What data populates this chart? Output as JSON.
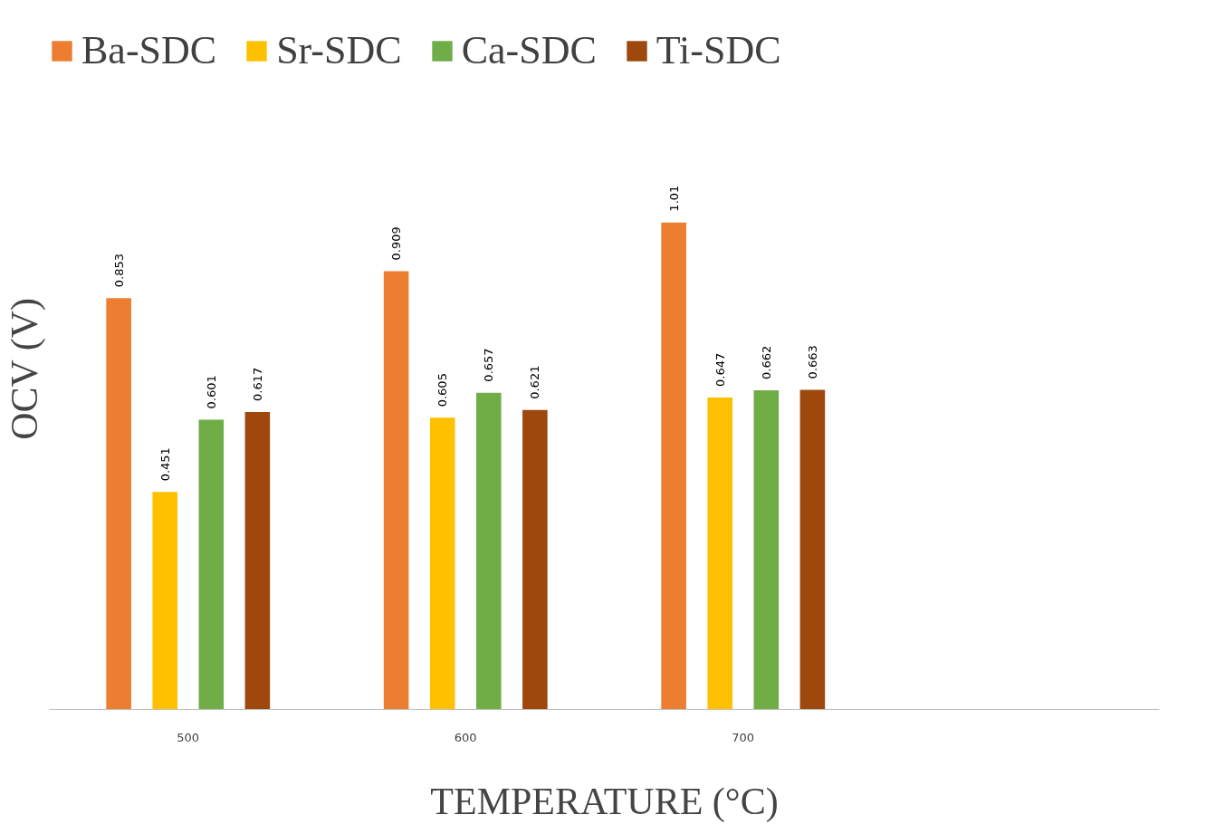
{
  "chart_data": {
    "type": "bar",
    "xlabel": "TEMPERATURE (°C)",
    "ylabel": "OCV (V)",
    "categories": [
      "500",
      "600",
      "700",
      null
    ],
    "series": [
      {
        "name": "Ba-SDC",
        "color": "#ed7d31",
        "values": [
          0.853,
          0.909,
          1.01,
          null
        ]
      },
      {
        "name": "Sr-SDC",
        "color": "#ffc000",
        "values": [
          0.451,
          0.605,
          0.647,
          null
        ]
      },
      {
        "name": "Ca-SDC",
        "color": "#70ad47",
        "values": [
          0.601,
          0.657,
          0.662,
          null
        ]
      },
      {
        "name": "Ti-SDC",
        "color": "#9e480e",
        "values": [
          0.617,
          0.621,
          0.663,
          null
        ]
      }
    ],
    "data_labels": true,
    "legend": "top",
    "grid": false
  }
}
